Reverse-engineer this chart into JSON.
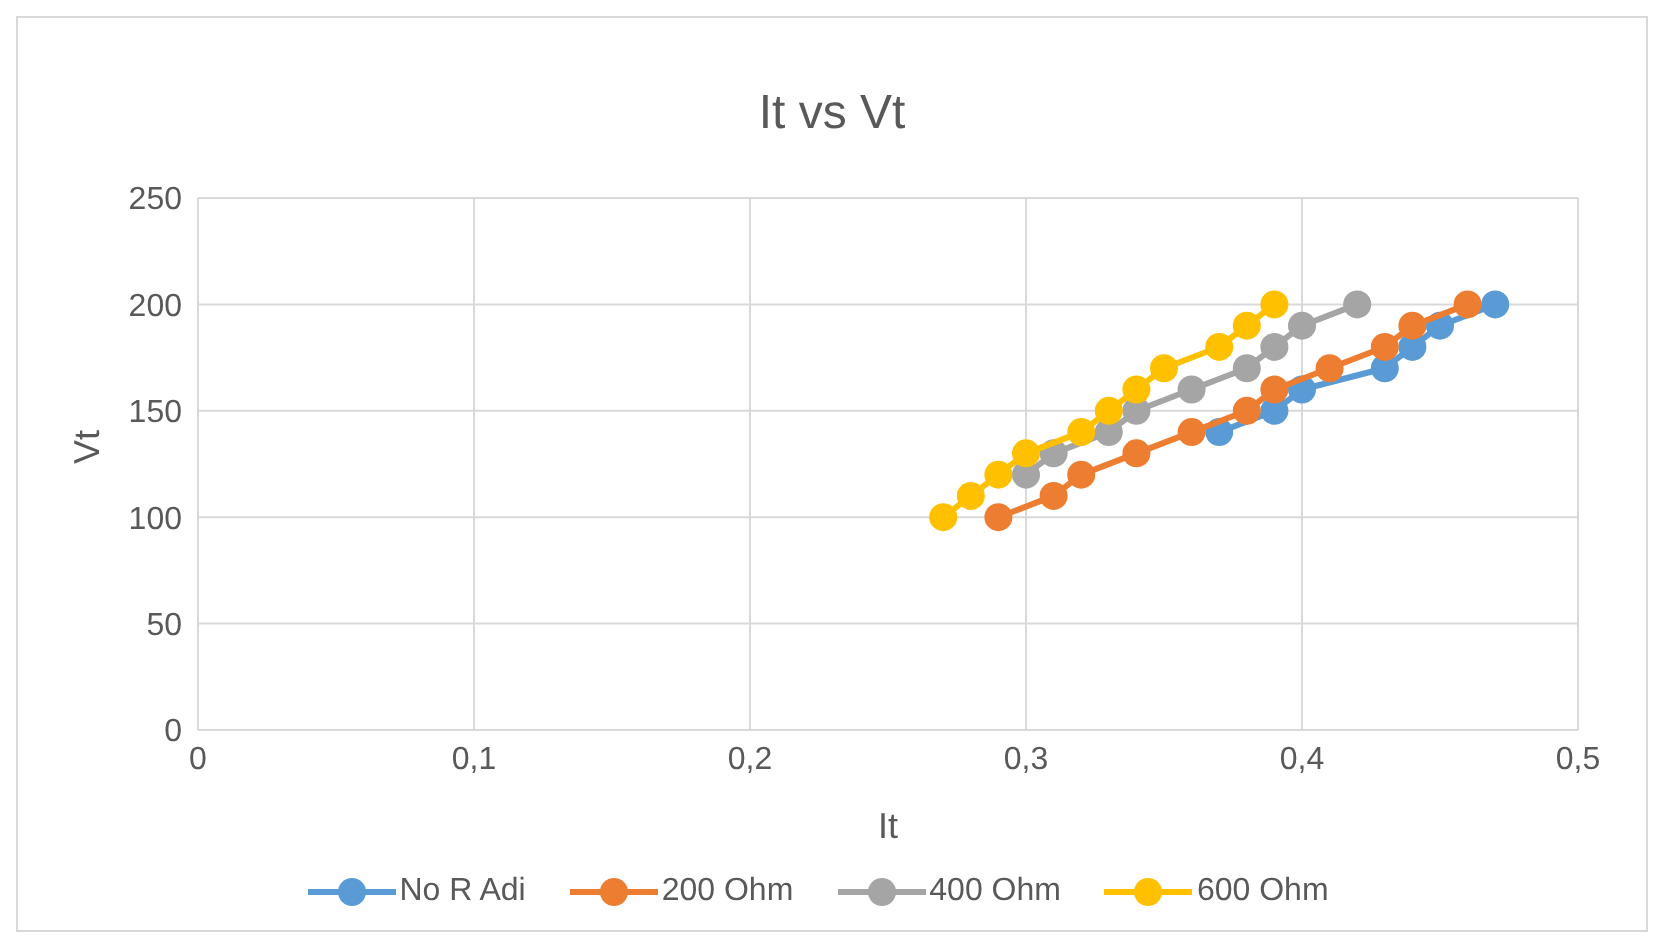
{
  "chart_data": {
    "type": "line",
    "title": "It vs Vt",
    "xlabel": "It",
    "ylabel": "Vt",
    "xlim": [
      0,
      0.5
    ],
    "xticks": [
      0,
      {
        "value": 0.1,
        "label": "0,1"
      },
      {
        "value": 0.2,
        "label": "0,2"
      },
      {
        "value": 0.3,
        "label": "0,3"
      },
      {
        "value": 0.4,
        "label": "0,4"
      },
      {
        "value": 0.5,
        "label": "0,5"
      }
    ],
    "ylim": [
      0,
      250
    ],
    "yticks": [
      0,
      50,
      100,
      150,
      200,
      250
    ],
    "grid": true,
    "legend": "bottom",
    "marker": "circle",
    "line_style": "solid",
    "series": [
      {
        "name": "No R Adi",
        "color": "#5b9bd5",
        "x": [
          0.37,
          0.39,
          0.4,
          0.43,
          0.44,
          0.45,
          0.47
        ],
        "values": [
          140,
          150,
          160,
          170,
          180,
          190,
          200
        ]
      },
      {
        "name": "200 Ohm",
        "color": "#ed7d31",
        "x": [
          0.29,
          0.31,
          0.32,
          0.34,
          0.36,
          0.38,
          0.39,
          0.41,
          0.43,
          0.44,
          0.46
        ],
        "values": [
          100,
          110,
          120,
          130,
          140,
          150,
          160,
          170,
          180,
          190,
          200
        ]
      },
      {
        "name": "400 Ohm",
        "color": "#a5a5a5",
        "x": [
          0.3,
          0.31,
          0.33,
          0.34,
          0.36,
          0.38,
          0.39,
          0.4,
          0.42
        ],
        "values": [
          120,
          130,
          140,
          150,
          160,
          170,
          180,
          190,
          200
        ]
      },
      {
        "name": "600 Ohm",
        "color": "#ffc000",
        "x": [
          0.27,
          0.28,
          0.29,
          0.3,
          0.32,
          0.33,
          0.34,
          0.35,
          0.37,
          0.38,
          0.39
        ],
        "values": [
          100,
          110,
          120,
          130,
          140,
          150,
          160,
          170,
          180,
          190,
          200
        ]
      }
    ]
  }
}
